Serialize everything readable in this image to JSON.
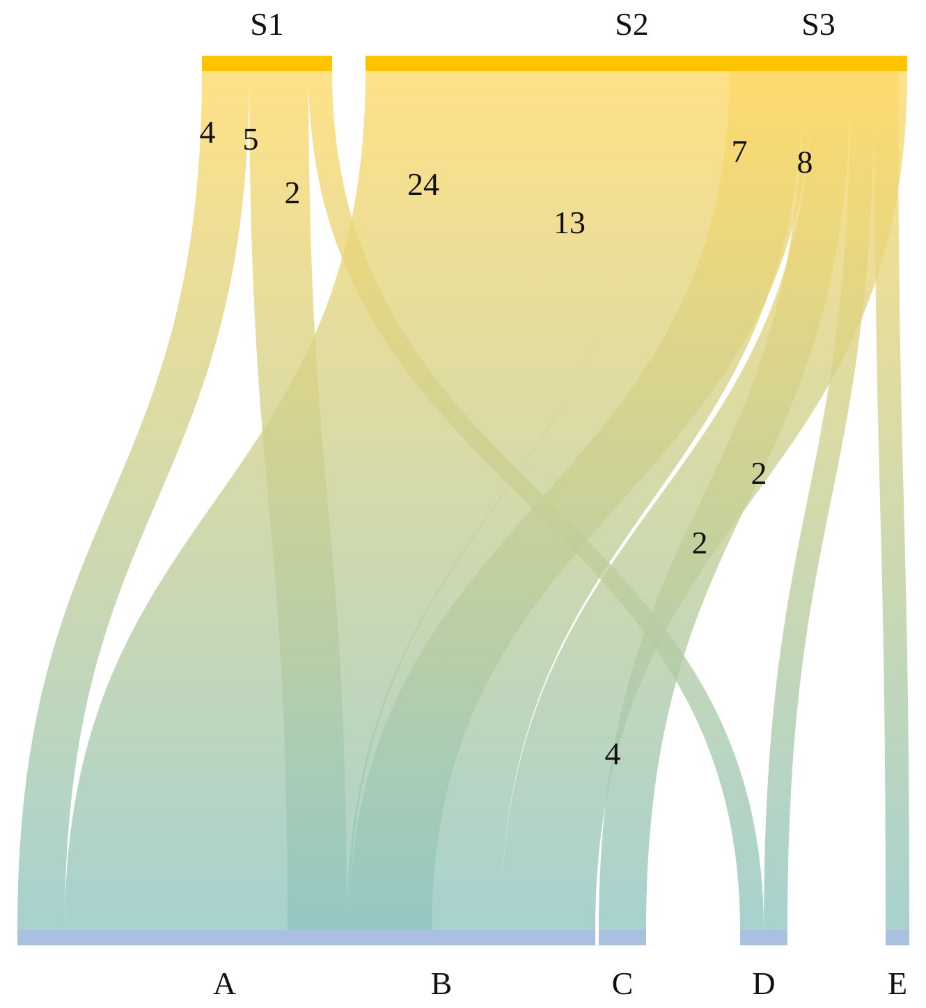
{
  "chart_data": {
    "type": "sankey",
    "sources": [
      {
        "id": "S1",
        "label": "S1"
      },
      {
        "id": "S2",
        "label": "S2"
      },
      {
        "id": "S3",
        "label": "S3"
      }
    ],
    "targets": [
      {
        "id": "A",
        "label": "A"
      },
      {
        "id": "B",
        "label": "B"
      },
      {
        "id": "C",
        "label": "C"
      },
      {
        "id": "D",
        "label": "D"
      },
      {
        "id": "E",
        "label": "E"
      }
    ],
    "links": [
      {
        "source": "S1",
        "target": "A",
        "value": 4,
        "label": "4"
      },
      {
        "source": "S1",
        "target": "B",
        "value": 5,
        "label": "5"
      },
      {
        "source": "S1",
        "target": "D",
        "value": 2,
        "label": "2"
      },
      {
        "source": "S2",
        "target": "A",
        "value": 24,
        "label": "24"
      },
      {
        "source": "S2",
        "target": "B",
        "value": 13,
        "label": "13"
      },
      {
        "source": "S2",
        "target": "C",
        "value": 4,
        "label": "4"
      },
      {
        "source": "S2",
        "target": "D",
        "value": 2,
        "label": "2"
      },
      {
        "source": "S2",
        "target": "E",
        "value": 2,
        "label": "2"
      },
      {
        "source": "S3",
        "target": "A",
        "value": 7,
        "label": "7"
      },
      {
        "source": "S3",
        "target": "B",
        "value": 8,
        "label": "8"
      }
    ],
    "colors": {
      "source_node": "#ffc400",
      "target_node": "#a9c0e0",
      "flow_top": "#ffd966",
      "flow_bottom": "#8ec5c2"
    }
  }
}
